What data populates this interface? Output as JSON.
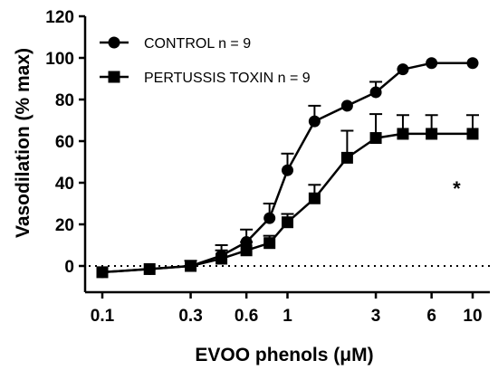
{
  "chart_data": {
    "type": "line",
    "xlabel": "EVOO phenols (μM)",
    "ylabel": "Vasodilation (% max)",
    "x_scale": "log",
    "xlim": [
      0.1,
      10
    ],
    "ylim": [
      -5,
      120
    ],
    "x_ticks": [
      "0.1",
      "0.3",
      "0.6",
      "1",
      "3",
      "6",
      "10"
    ],
    "y_ticks": [
      "0",
      "20",
      "40",
      "60",
      "80",
      "100",
      "120"
    ],
    "baseline": 0,
    "grid": false,
    "legend_position": "top-left",
    "series": [
      {
        "name": "CONTROL  n = 9",
        "marker": "circle",
        "color": "#000000",
        "x": [
          0.1,
          0.18,
          0.3,
          0.44,
          0.6,
          0.8,
          1,
          1.4,
          2.1,
          3,
          4.2,
          6,
          10
        ],
        "y": [
          -3,
          -1.5,
          0,
          5,
          11.5,
          23,
          46,
          69.5,
          77,
          83.5,
          94.5,
          97.5,
          97.5
        ],
        "error": [
          0,
          0,
          2.5,
          5,
          6,
          7,
          8,
          7.5,
          0,
          5,
          0,
          0,
          0
        ]
      },
      {
        "name": "PERTUSSIS TOXIN n = 9",
        "marker": "square",
        "color": "#000000",
        "x": [
          0.1,
          0.18,
          0.3,
          0.44,
          0.6,
          0.8,
          1,
          1.4,
          2.1,
          3,
          4.2,
          6,
          10
        ],
        "y": [
          -3,
          -1.5,
          0,
          3.5,
          7.5,
          11,
          21,
          32.5,
          52,
          61.5,
          63.5,
          63.5,
          63.5
        ],
        "error": [
          0,
          0,
          0,
          4,
          4,
          3.5,
          4,
          6.5,
          13,
          11.5,
          9,
          9,
          9
        ]
      }
    ],
    "annotations": [
      {
        "text": "*",
        "x": 8.2,
        "y": 40
      }
    ]
  }
}
